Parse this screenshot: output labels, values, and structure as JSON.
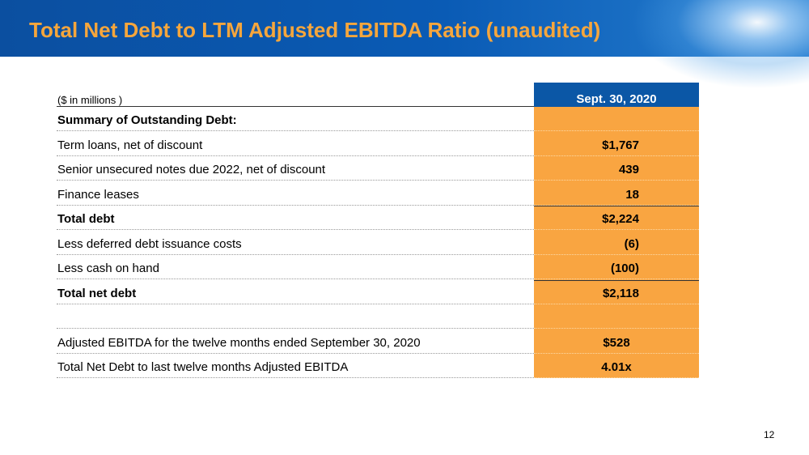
{
  "header": {
    "title": "Total Net Debt to LTM Adjusted EBITDA Ratio (unaudited)"
  },
  "table": {
    "unit_note": "($ in millions )",
    "column_header": "Sept. 30, 2020",
    "rows": [
      {
        "label": "Summary of Outstanding Debt:",
        "bold": true
      },
      {
        "label": "Term loans, net of discount",
        "value": "$1,767"
      },
      {
        "label": "Senior unsecured notes due 2022, net of discount",
        "value": "439"
      },
      {
        "label": "Finance leases",
        "value": "18"
      },
      {
        "label": "Total debt",
        "value": "$2,224",
        "bold": true,
        "rule_above": true
      },
      {
        "label": "Less deferred debt issuance costs",
        "value": "(6)"
      },
      {
        "label": "Less cash on hand",
        "value": "(100)"
      },
      {
        "label": "Total net debt",
        "value": "$2,118",
        "bold": true,
        "rule_above": true
      }
    ],
    "summary_rows": [
      {
        "label": "Adjusted EBITDA for the twelve months ended September 30, 2020",
        "value": "$528"
      },
      {
        "label": "Total Net Debt to last twelve months Adjusted EBITDA",
        "value": "4.01x"
      }
    ]
  },
  "page_number": "12"
}
